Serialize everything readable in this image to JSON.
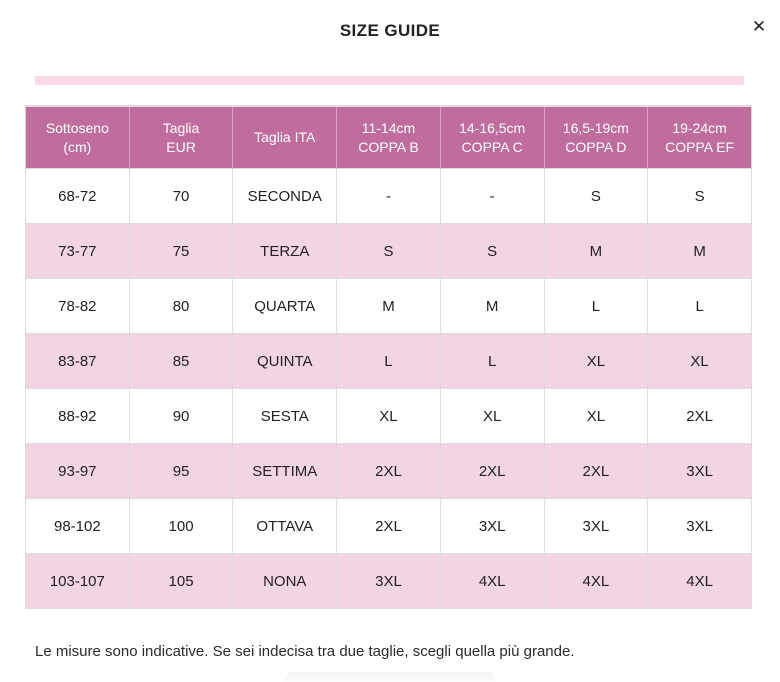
{
  "modal": {
    "title": "SIZE GUIDE",
    "close_icon": "✕"
  },
  "colors": {
    "header_bg": "#c06d9d",
    "row_alt_bg": "#f3d4e4",
    "accent_bar": "#fbd9e9"
  },
  "table": {
    "headers": [
      "Sottoseno\n(cm)",
      "Taglia\nEUR",
      "Taglia ITA",
      "11-14cm\nCOPPA B",
      "14-16,5cm\nCOPPA C",
      "16,5-19cm\nCOPPA D",
      "19-24cm\nCOPPA EF"
    ],
    "rows": [
      [
        "68-72",
        "70",
        "SECONDA",
        "-",
        "-",
        "S",
        "S"
      ],
      [
        "73-77",
        "75",
        "TERZA",
        "S",
        "S",
        "M",
        "M"
      ],
      [
        "78-82",
        "80",
        "QUARTA",
        "M",
        "M",
        "L",
        "L"
      ],
      [
        "83-87",
        "85",
        "QUINTA",
        "L",
        "L",
        "XL",
        "XL"
      ],
      [
        "88-92",
        "90",
        "SESTA",
        "XL",
        "XL",
        "XL",
        "2XL"
      ],
      [
        "93-97",
        "95",
        "SETTIMA",
        "2XL",
        "2XL",
        "2XL",
        "3XL"
      ],
      [
        "98-102",
        "100",
        "OTTAVA",
        "2XL",
        "3XL",
        "3XL",
        "3XL"
      ],
      [
        "103-107",
        "105",
        "NONA",
        "3XL",
        "4XL",
        "4XL",
        "4XL"
      ]
    ]
  },
  "footer": {
    "note": "Le misure sono indicative. Se sei indecisa tra due taglie, scegli quella più grande."
  }
}
